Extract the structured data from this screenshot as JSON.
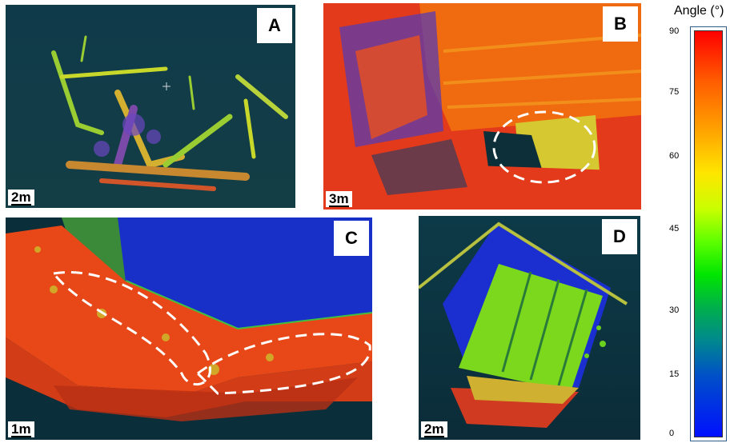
{
  "panels": {
    "a": {
      "letter": "A",
      "scale": "2m"
    },
    "b": {
      "letter": "B",
      "scale": "3m"
    },
    "c": {
      "letter": "C",
      "scale": "1m"
    },
    "d": {
      "letter": "D",
      "scale": "2m"
    }
  },
  "colorbar": {
    "title": "Angle (°)",
    "ticks": [
      "90",
      "75",
      "60",
      "45",
      "30",
      "15",
      "0"
    ],
    "colors": {
      "top": "#ff0000",
      "mid": "#00e600",
      "bottom": "#0010ff"
    }
  }
}
